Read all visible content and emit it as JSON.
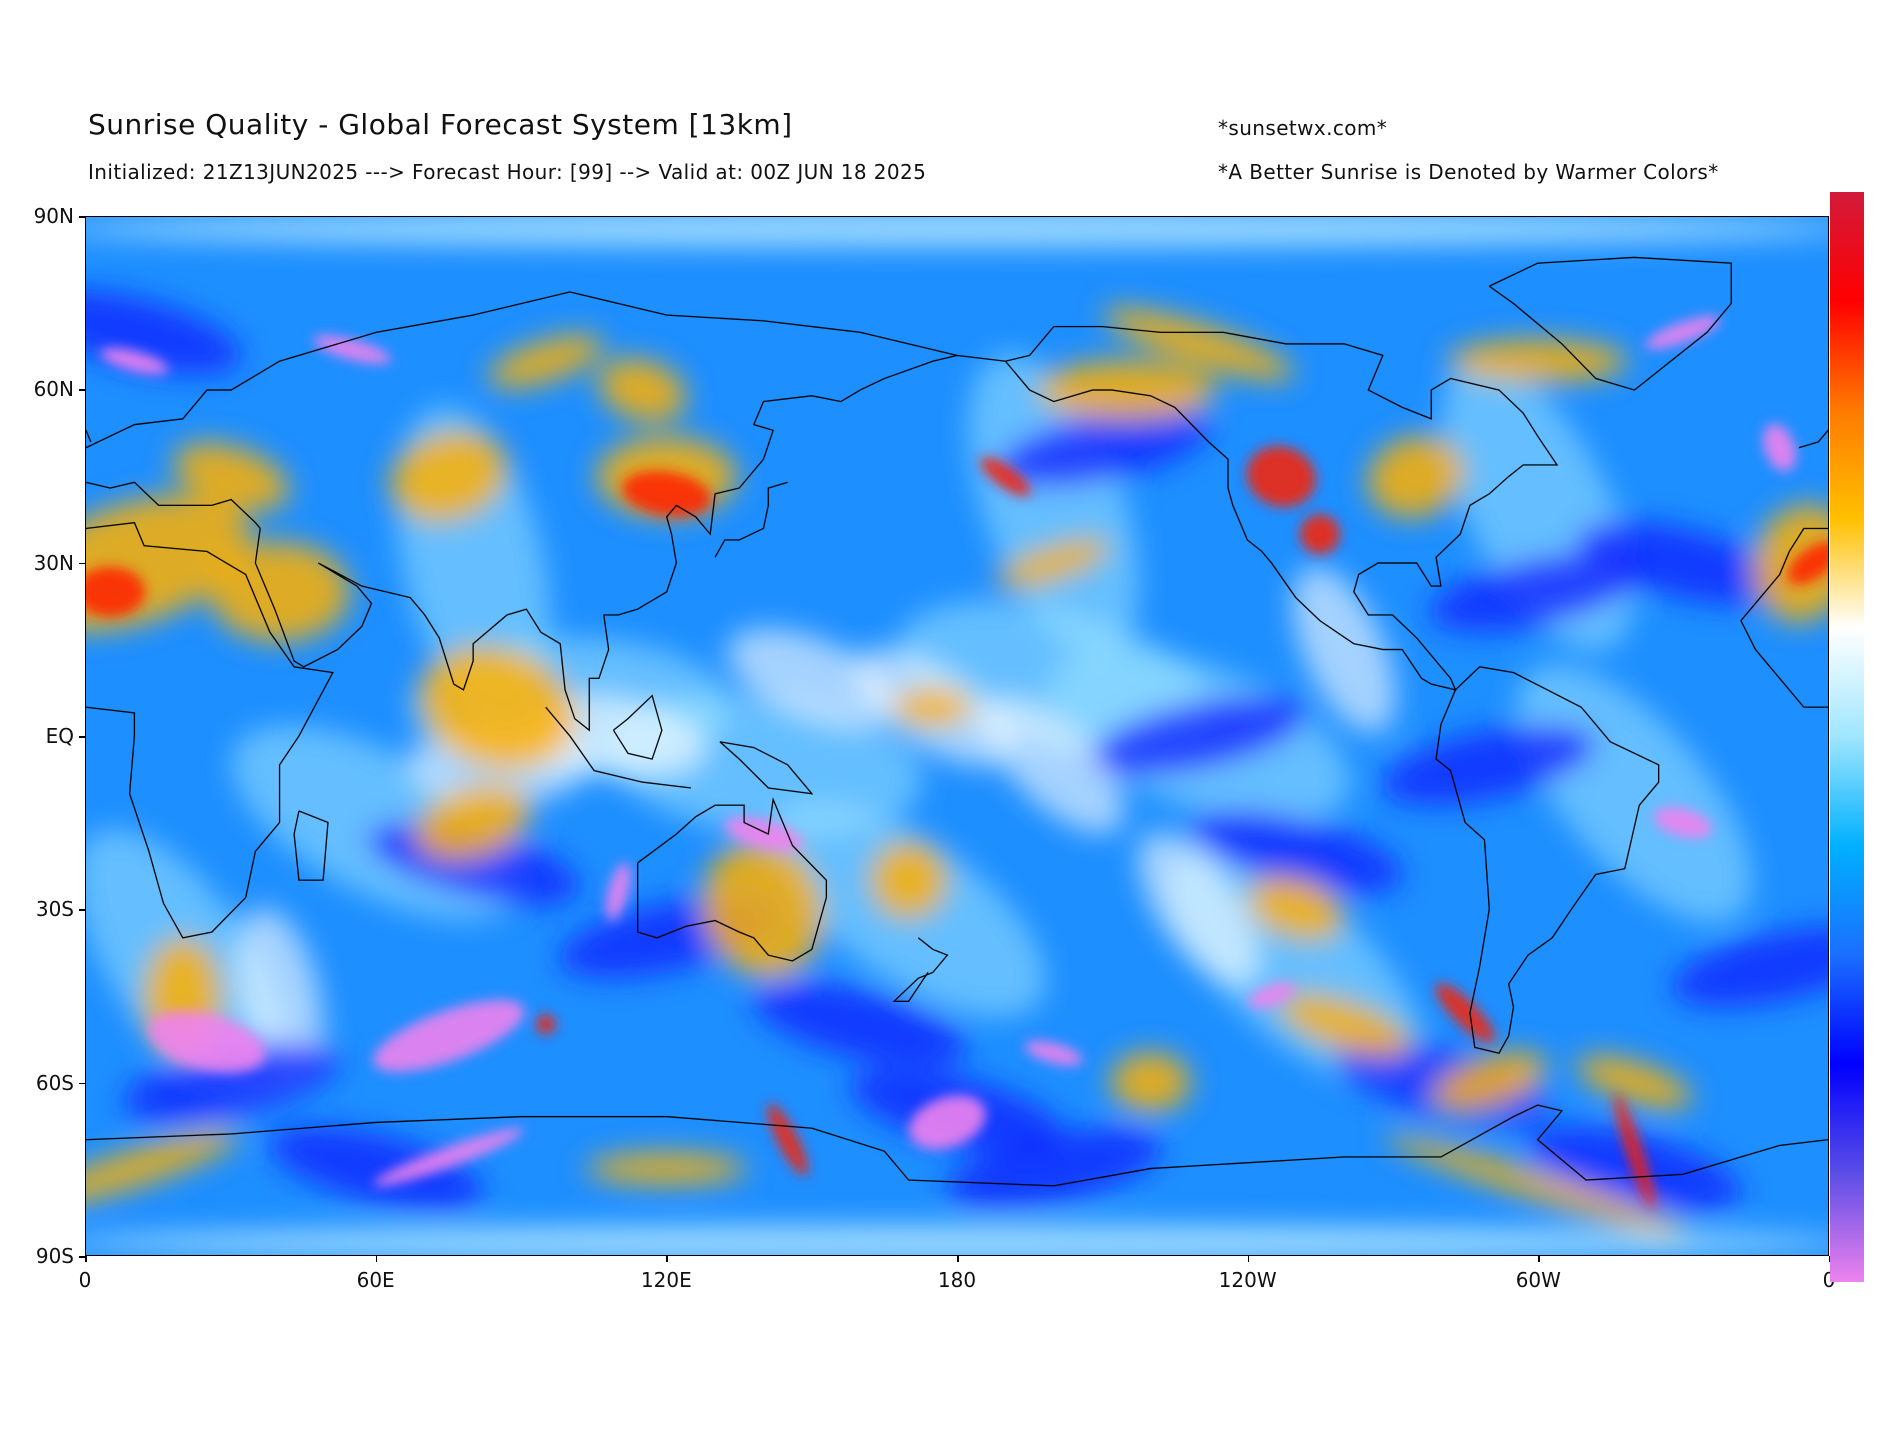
{
  "header": {
    "title": "Sunrise Quality - Global Forecast System [13km]",
    "subtitle": "Initialized: 21Z13JUN2025 ---> Forecast Hour: [99] --> Valid at: 00Z JUN 18 2025",
    "credit": "*sunsetwx.com*",
    "note": "*A Better Sunrise is Denoted by Warmer Colors*"
  },
  "axes": {
    "y_ticks": [
      "90N",
      "60N",
      "30N",
      "EQ",
      "30S",
      "60S",
      "90S"
    ],
    "x_ticks": [
      "0",
      "60E",
      "120E",
      "180",
      "120W",
      "60W",
      "0"
    ]
  },
  "map": {
    "projection": "equirectangular",
    "lon_range": [
      0,
      360
    ],
    "lat_range": [
      -90,
      90
    ],
    "colors": {
      "poor": "#1a3fff",
      "very_poor": "#ee82ee",
      "fair": "#00bfff",
      "neutral": "#ffffff",
      "good": "#ffb400",
      "great": "#ff2a00",
      "best": "#d11a3a"
    }
  },
  "colorbar": {
    "orientation": "vertical",
    "stops": [
      "#d11a3a",
      "#ff0000",
      "#ff7a00",
      "#ffc000",
      "#ffffff",
      "#9fe6ff",
      "#00b0ff",
      "#1a6fff",
      "#0000ff",
      "#5a4de6",
      "#ee82ee"
    ]
  }
}
